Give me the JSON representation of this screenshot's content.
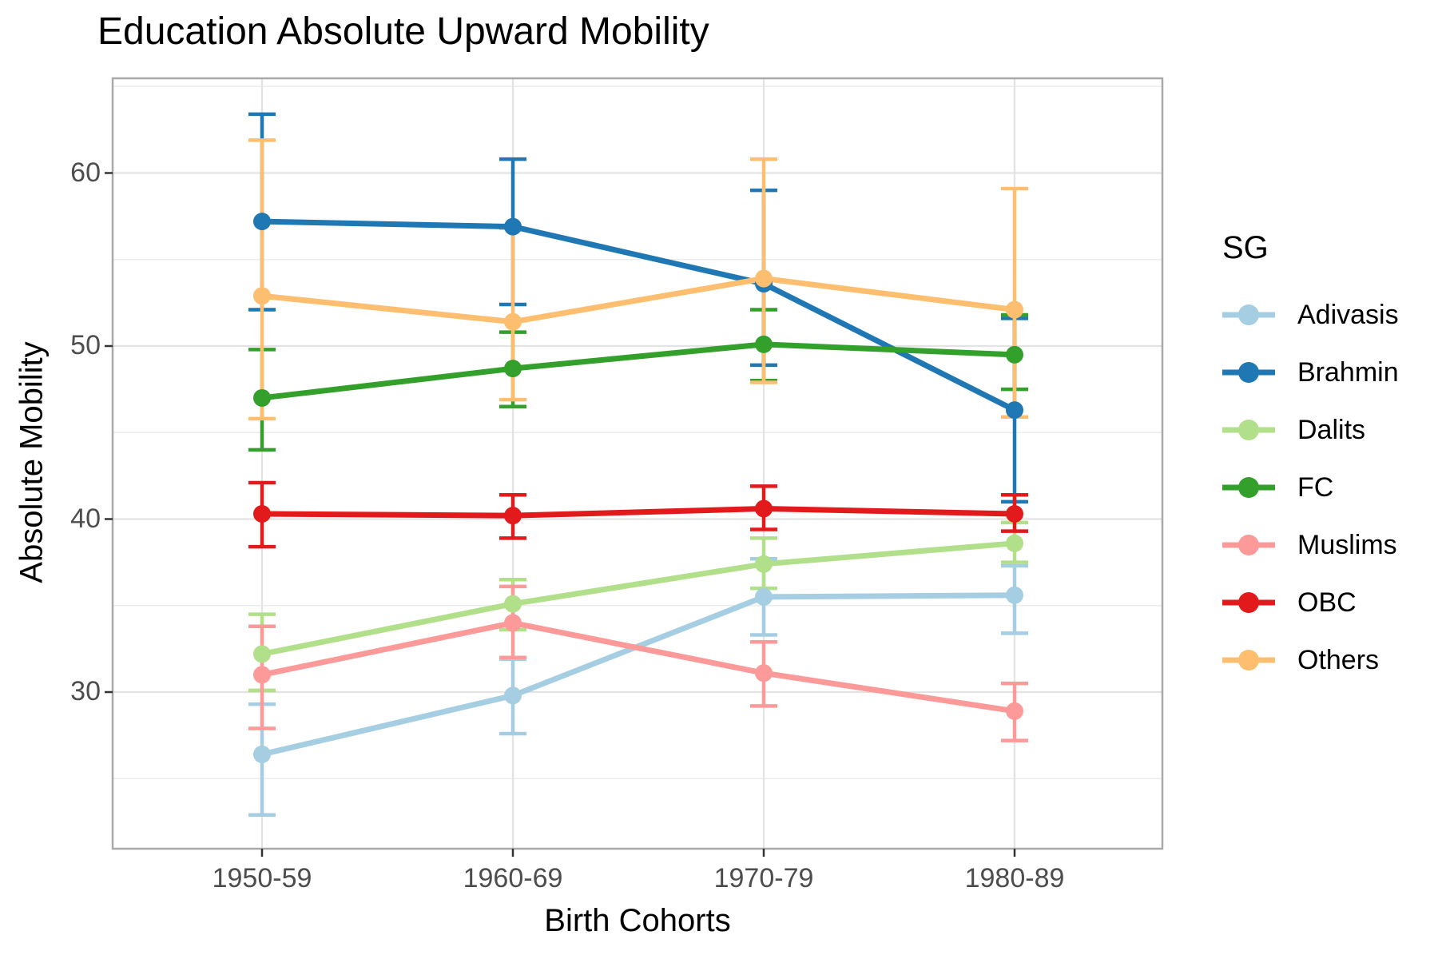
{
  "title": "Education Absolute Upward Mobility",
  "axes": {
    "x": {
      "label": "Birth Cohorts",
      "categories": [
        "1950-59",
        "1960-69",
        "1970-79",
        "1980-89"
      ]
    },
    "y": {
      "label": "Absolute Mobility",
      "ticks": [
        30,
        40,
        50,
        60
      ],
      "minor_ticks": [
        25,
        35,
        45,
        55,
        65
      ],
      "range": [
        21,
        65.5
      ]
    }
  },
  "legend": {
    "title": "SG",
    "items": [
      {
        "label": "Adivasis",
        "color": "#A6CEE3"
      },
      {
        "label": "Brahmin",
        "color": "#1F78B4"
      },
      {
        "label": "Dalits",
        "color": "#B2DF8A"
      },
      {
        "label": "FC",
        "color": "#33A02C"
      },
      {
        "label": "Muslims",
        "color": "#FB9A99"
      },
      {
        "label": "OBC",
        "color": "#E31A1C"
      },
      {
        "label": "Others",
        "color": "#FDBF6F"
      }
    ]
  },
  "chart_data": {
    "type": "line",
    "title": "Education Absolute Upward Mobility",
    "xlabel": "Birth Cohorts",
    "ylabel": "Absolute Mobility",
    "categories": [
      "1950-59",
      "1960-69",
      "1970-79",
      "1980-89"
    ],
    "ylim": [
      21,
      65.5
    ],
    "grid": "on",
    "legend_position": "right",
    "error_bars": true,
    "series": [
      {
        "name": "Adivasis",
        "color": "#A6CEE3",
        "values": [
          26.4,
          29.8,
          35.5,
          35.6
        ],
        "lower": [
          22.9,
          27.6,
          33.3,
          33.4
        ],
        "upper": [
          29.3,
          31.9,
          37.7,
          37.3
        ]
      },
      {
        "name": "Brahmin",
        "color": "#1F78B4",
        "values": [
          57.2,
          56.9,
          53.6,
          46.3
        ],
        "lower": [
          52.1,
          52.4,
          48.9,
          41.0
        ],
        "upper": [
          63.4,
          60.8,
          59.0,
          51.6
        ]
      },
      {
        "name": "Dalits",
        "color": "#B2DF8A",
        "values": [
          32.2,
          35.1,
          37.4,
          38.6
        ],
        "lower": [
          30.1,
          33.6,
          36.0,
          37.5
        ],
        "upper": [
          34.5,
          36.5,
          38.9,
          39.8
        ]
      },
      {
        "name": "FC",
        "color": "#33A02C",
        "values": [
          47.0,
          48.7,
          50.1,
          49.5
        ],
        "lower": [
          44.0,
          46.5,
          48.0,
          47.5
        ],
        "upper": [
          49.8,
          50.8,
          52.1,
          51.8
        ]
      },
      {
        "name": "Muslims",
        "color": "#FB9A99",
        "values": [
          31.0,
          34.0,
          31.1,
          28.9
        ],
        "lower": [
          27.9,
          32.0,
          29.2,
          27.2
        ],
        "upper": [
          33.8,
          36.1,
          32.9,
          30.5
        ]
      },
      {
        "name": "OBC",
        "color": "#E31A1C",
        "values": [
          40.3,
          40.2,
          40.6,
          40.3
        ],
        "lower": [
          38.4,
          38.9,
          39.4,
          39.3
        ],
        "upper": [
          42.1,
          41.4,
          41.9,
          41.4
        ]
      },
      {
        "name": "Others",
        "color": "#FDBF6F",
        "values": [
          52.9,
          51.4,
          53.9,
          52.1
        ],
        "lower": [
          45.8,
          46.9,
          47.9,
          45.9
        ],
        "upper": [
          61.9,
          56.8,
          60.8,
          59.1
        ]
      }
    ]
  },
  "style_colors": {
    "panel_border": "#a9a9a9",
    "grid_major": "#e3e3e3",
    "grid_minor": "#ececec",
    "tick_mark": "#333333",
    "tick_text": "#4d4d4d"
  }
}
